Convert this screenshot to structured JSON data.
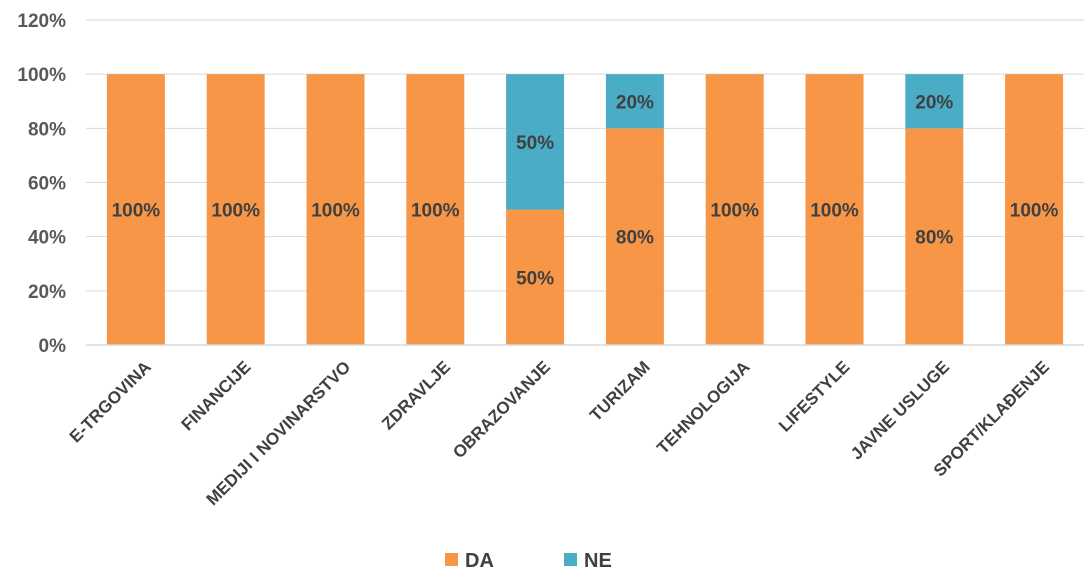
{
  "chart_data": {
    "type": "bar",
    "stacked": true,
    "categories": [
      "E-TRGOVINA",
      "FINANCIJE",
      "MEDIJI I NOVINARSTVO",
      "ZDRAVLJE",
      "OBRAZOVANJE",
      "TURIZAM",
      "TEHNOLOGIJA",
      "LIFESTYLE",
      "JAVNE USLUGE",
      "SPORT/KLAĐENJE"
    ],
    "series": [
      {
        "name": "DA",
        "color": "#F79646",
        "values": [
          100,
          100,
          100,
          100,
          50,
          80,
          100,
          100,
          80,
          100
        ],
        "labels": [
          "100%",
          "100%",
          "100%",
          "100%",
          "50%",
          "80%",
          "100%",
          "100%",
          "80%",
          "100%"
        ]
      },
      {
        "name": "NE",
        "color": "#4BACC6",
        "values": [
          0,
          0,
          0,
          0,
          50,
          20,
          0,
          0,
          20,
          0
        ],
        "labels": [
          "",
          "",
          "",
          "",
          "50%",
          "20%",
          "",
          "",
          "20%",
          ""
        ]
      }
    ],
    "yticks": [
      "0%",
      "20%",
      "40%",
      "60%",
      "80%",
      "100%",
      "120%"
    ],
    "ylim": [
      0,
      120
    ],
    "grid": true,
    "legend_position": "bottom"
  }
}
